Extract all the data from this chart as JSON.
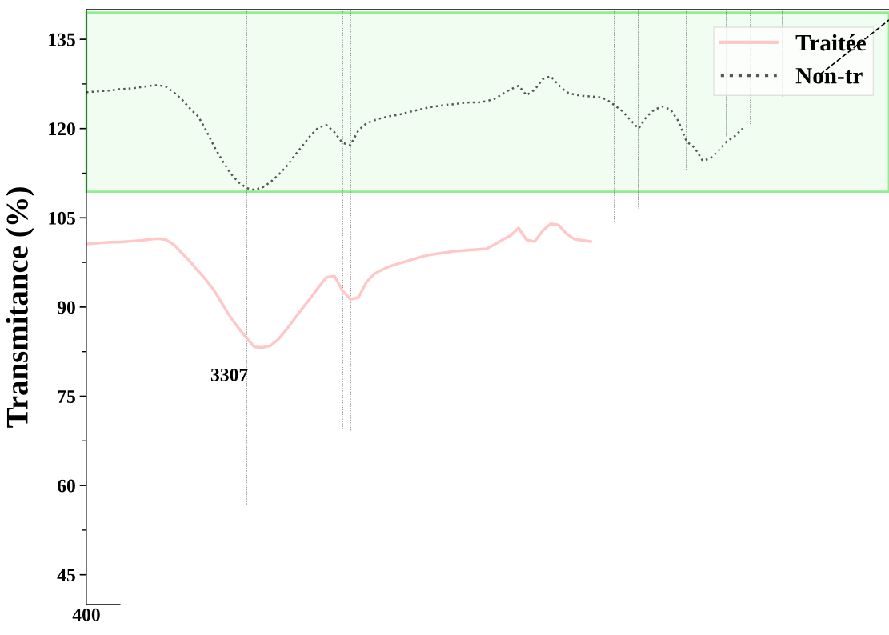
{
  "chart_data": {
    "type": "line",
    "ylabel": "Transmitance (%)",
    "categories": [
      "400",
      null,
      null,
      null,
      null,
      null,
      null,
      null,
      null,
      null,
      null,
      null,
      null,
      null,
      null,
      null,
      null,
      null,
      null,
      null,
      null,
      null,
      null,
      null,
      null,
      null,
      null,
      null,
      null,
      null,
      null,
      null,
      null,
      null,
      null,
      null,
      null,
      null,
      null,
      null,
      null,
      null,
      null,
      null,
      null,
      null,
      null,
      null,
      null,
      null,
      null,
      null,
      null,
      null,
      null,
      null,
      null,
      null,
      null,
      null,
      null,
      null,
      null,
      null,
      null,
      null,
      null,
      null,
      null,
      null,
      null,
      null,
      null,
      null,
      null,
      null,
      null,
      null,
      null,
      null,
      null,
      null,
      null,
      null,
      null,
      null,
      null,
      null,
      null,
      null,
      null,
      null,
      null,
      null,
      null,
      null,
      null,
      null,
      null,
      null,
      null
    ],
    "ylim": [
      40,
      140
    ],
    "yticks": [
      45,
      60,
      75,
      90,
      105,
      120,
      135
    ],
    "grid": false,
    "legend": "top right",
    "marker": "none",
    "series": [
      {
        "name": "Traitée",
        "color": "#ffc8c8",
        "line_style": "solid",
        "values": [
          100.6,
          100.7,
          100.8,
          100.9,
          100.9,
          101.0,
          101.1,
          101.2,
          101.4,
          101.5,
          101.3,
          100.4,
          99.0,
          97.6,
          96.0,
          94.5,
          92.7,
          90.5,
          88.3,
          86.5,
          84.8,
          83.3,
          83.2,
          83.5,
          84.6,
          86.2,
          88.0,
          89.8,
          91.5,
          93.3,
          95.0,
          95.2,
          92.8,
          91.3,
          91.6,
          94.2,
          95.6,
          96.3,
          96.9,
          97.3,
          97.7,
          98.1,
          98.5,
          98.8,
          99.0,
          99.2,
          99.4,
          99.5,
          99.6,
          99.7,
          99.8,
          100.5,
          101.3,
          102.0,
          103.3,
          101.3,
          101.0,
          102.8,
          104.0,
          103.8,
          102.3,
          101.4,
          101.2,
          101.0,
          null,
          null,
          null,
          null,
          null,
          null,
          null,
          null,
          null,
          null,
          null,
          null,
          null,
          null,
          null,
          null,
          null,
          null,
          null,
          null,
          null,
          null,
          null,
          null,
          null,
          null,
          null,
          null,
          null,
          null,
          null,
          null,
          null,
          null,
          null,
          null,
          null
        ]
      },
      {
        "name": "Non-tr",
        "color": "#555555",
        "line_style": "dotted",
        "values": [
          126.1,
          126.2,
          126.3,
          126.4,
          126.6,
          126.7,
          126.8,
          127.0,
          127.2,
          127.3,
          127.0,
          126.0,
          124.8,
          123.3,
          122.0,
          119.6,
          116.9,
          114.6,
          112.5,
          111.0,
          110.0,
          109.7,
          110.1,
          111.0,
          112.2,
          113.6,
          115.4,
          117.1,
          118.8,
          120.2,
          120.6,
          119.4,
          117.6,
          117.2,
          119.7,
          120.9,
          121.4,
          121.8,
          122.1,
          122.3,
          122.7,
          123.0,
          123.3,
          123.6,
          123.8,
          124.0,
          124.1,
          124.3,
          124.4,
          124.4,
          124.6,
          125.0,
          125.8,
          126.6,
          127.2,
          125.6,
          126.5,
          128.3,
          128.8,
          127.3,
          126.1,
          125.7,
          125.5,
          125.4,
          125.3,
          124.9,
          123.9,
          122.9,
          121.4,
          120.0,
          122.0,
          123.2,
          123.7,
          123.2,
          121.2,
          117.8,
          116.8,
          114.6,
          115.0,
          116.3,
          117.8,
          118.7,
          120.0,
          null,
          null,
          null,
          null,
          null,
          null,
          null,
          null,
          null,
          null,
          null,
          null,
          null,
          null,
          null,
          null,
          null,
          null
        ]
      },
      {
        "type": "bar",
        "color": "#666666",
        "line_style": "dotted",
        "base": [
          null,
          null,
          null,
          null,
          null,
          null,
          null,
          null,
          null,
          null,
          null,
          null,
          null,
          null,
          null,
          null,
          null,
          null,
          null,
          null,
          56.9,
          null,
          null,
          null,
          null,
          null,
          null,
          null,
          null,
          null,
          null,
          null,
          69.5,
          69.3,
          null,
          null,
          null,
          null,
          null,
          null,
          null,
          null,
          null,
          null,
          null,
          null,
          null,
          null,
          null,
          null,
          null,
          null,
          null,
          null,
          null,
          null,
          null,
          null,
          null,
          null,
          null,
          null,
          null,
          null,
          null,
          null,
          104.3,
          null,
          null,
          106.6,
          null,
          null,
          null,
          null,
          null,
          113.0,
          null,
          null,
          null,
          null,
          118.7,
          null,
          null,
          120.8,
          null,
          null,
          null,
          125.4,
          null,
          null,
          null,
          null,
          null,
          null,
          null,
          null,
          null,
          null,
          null,
          null,
          null
        ],
        "values": [
          null,
          null,
          null,
          null,
          null,
          null,
          null,
          null,
          null,
          null,
          null,
          null,
          null,
          null,
          null,
          null,
          null,
          null,
          null,
          null,
          83.1,
          null,
          null,
          null,
          null,
          null,
          null,
          null,
          null,
          null,
          null,
          null,
          70.5,
          70.7,
          null,
          null,
          null,
          null,
          null,
          null,
          null,
          null,
          null,
          null,
          null,
          null,
          null,
          null,
          null,
          null,
          null,
          null,
          null,
          null,
          null,
          null,
          null,
          null,
          null,
          null,
          null,
          null,
          null,
          null,
          null,
          null,
          35.7,
          null,
          null,
          33.4,
          null,
          null,
          null,
          null,
          null,
          27.0,
          null,
          null,
          null,
          null,
          21.3,
          null,
          null,
          19.2,
          null,
          null,
          null,
          14.6,
          null,
          null,
          null,
          null,
          null,
          null,
          null,
          null,
          null,
          null,
          null,
          null,
          null
        ]
      }
    ],
    "bands": [
      {
        "axis": "y",
        "from": 109.4,
        "to": 139.5,
        "color": "#90ee90"
      }
    ],
    "annotations": [
      "3307"
    ]
  }
}
